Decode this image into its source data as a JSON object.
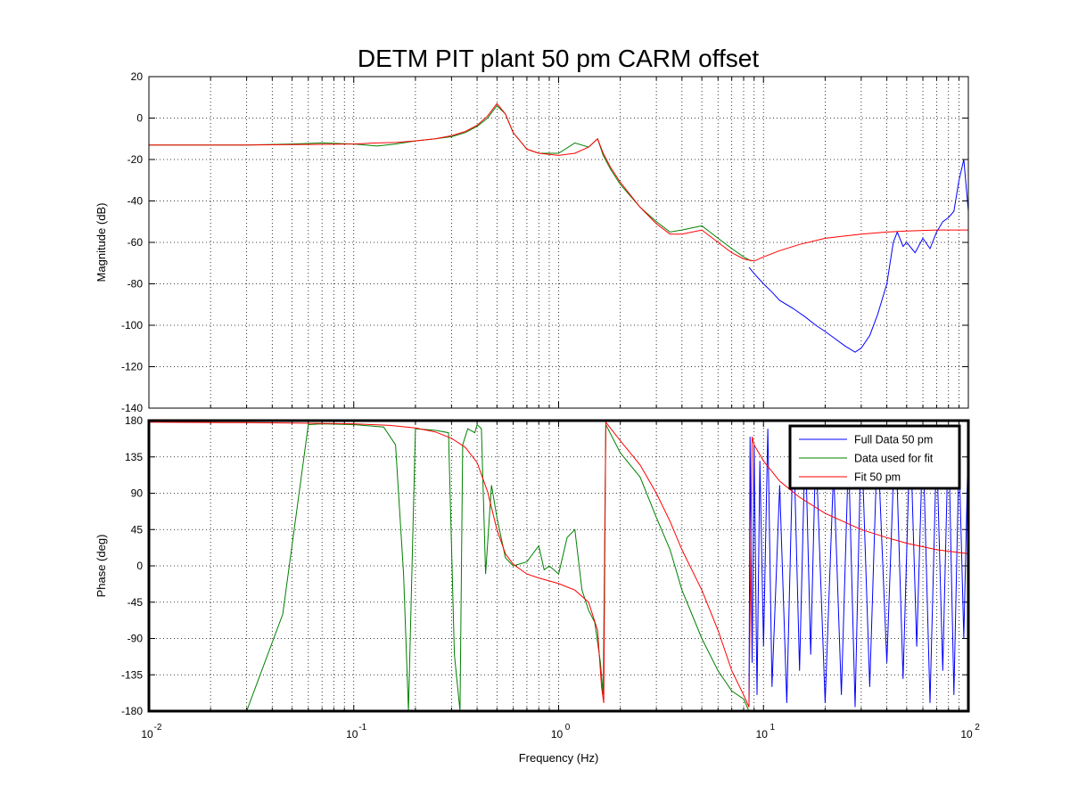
{
  "chart_data": [
    {
      "type": "line",
      "panel": "magnitude",
      "title": "DETM PIT plant 50 pm CARM offset",
      "xlabel": "",
      "ylabel": "Magnitude (dB)",
      "xscale": "log",
      "xlim": [
        0.01,
        100
      ],
      "ylim": [
        -140,
        20
      ],
      "yticks": [
        "20",
        "0",
        "-20",
        "-40",
        "-60",
        "-80",
        "-100",
        "-120",
        "-140"
      ],
      "grid": true,
      "series": [
        {
          "name": "Full Data 50 pm",
          "color": "#0000ff",
          "x": [
            8.5,
            9,
            10,
            11,
            12,
            14,
            16,
            18,
            20,
            22,
            25,
            28,
            30,
            33,
            36,
            40,
            43,
            45,
            48,
            50,
            55,
            60,
            65,
            70,
            75,
            80,
            85,
            90,
            95,
            100
          ],
          "y": [
            -72,
            -75,
            -80,
            -84,
            -88,
            -92,
            -96,
            -100,
            -103,
            -106,
            -110,
            -113,
            -111,
            -105,
            -95,
            -80,
            -60,
            -55,
            -62,
            -60,
            -65,
            -58,
            -63,
            -55,
            -50,
            -48,
            -45,
            -30,
            -20,
            -45
          ]
        },
        {
          "name": "Data used for fit",
          "color": "#008000",
          "x": [
            0.01,
            0.03,
            0.05,
            0.07,
            0.1,
            0.13,
            0.16,
            0.2,
            0.25,
            0.3,
            0.35,
            0.4,
            0.45,
            0.5,
            0.55,
            0.6,
            0.7,
            0.8,
            0.9,
            1.0,
            1.2,
            1.4,
            1.55,
            1.65,
            1.8,
            2.0,
            2.5,
            3.0,
            3.5,
            4.0,
            5.0,
            6.0,
            7.0,
            8.0,
            8.7
          ],
          "y": [
            -13,
            -13,
            -12.5,
            -12,
            -12.5,
            -13.5,
            -12.5,
            -11,
            -10,
            -9,
            -7,
            -4,
            0,
            6,
            2,
            -7,
            -15,
            -17,
            -17,
            -17,
            -12,
            -14,
            -10,
            -18,
            -25,
            -32,
            -43,
            -50,
            -55,
            -54,
            -52,
            -58,
            -63,
            -67,
            -69
          ]
        },
        {
          "name": "Fit 50 pm",
          "color": "#ff0000",
          "x": [
            0.01,
            0.03,
            0.05,
            0.07,
            0.1,
            0.13,
            0.16,
            0.2,
            0.25,
            0.3,
            0.35,
            0.4,
            0.45,
            0.5,
            0.55,
            0.6,
            0.7,
            0.8,
            0.9,
            1.0,
            1.2,
            1.4,
            1.55,
            1.65,
            1.8,
            2.0,
            2.5,
            3.0,
            3.5,
            4.0,
            5.0,
            6.0,
            7.0,
            8.0,
            9.0,
            10,
            12,
            15,
            20,
            30,
            40,
            50,
            70,
            100
          ],
          "y": [
            -13,
            -13,
            -12.8,
            -12.7,
            -12.5,
            -12,
            -11.8,
            -11,
            -10,
            -8.5,
            -6.5,
            -3.5,
            1,
            7,
            2,
            -7,
            -15,
            -17,
            -17.5,
            -18,
            -17,
            -14,
            -10,
            -17,
            -24,
            -31,
            -43,
            -51,
            -56,
            -56,
            -54,
            -60,
            -65,
            -68,
            -69,
            -67,
            -64,
            -61,
            -58,
            -56,
            -55,
            -54.5,
            -54,
            -54
          ]
        }
      ]
    },
    {
      "type": "line",
      "panel": "phase",
      "title": "",
      "xlabel": "Frequency  (Hz)",
      "ylabel": "Phase (deg)",
      "xscale": "log",
      "xlim": [
        0.01,
        100
      ],
      "ylim": [
        -180,
        180
      ],
      "yticks": [
        "180",
        "135",
        "90",
        "45",
        "0",
        "-45",
        "-90",
        "-135",
        "-180"
      ],
      "xticks": [
        "10",
        "10",
        "10",
        "10",
        "10"
      ],
      "xtick_exponents": [
        "-2",
        "-1",
        "0",
        "1",
        "2"
      ],
      "grid": true,
      "legend": {
        "position": "top-right",
        "entries": [
          "Full Data 50 pm",
          "Data used for fit",
          "Fit 50 pm"
        ]
      },
      "series": [
        {
          "name": "Full Data 50 pm",
          "color": "#0000ff",
          "x": [
            8.5,
            8.6,
            8.8,
            9.0,
            9.3,
            9.6,
            10,
            10.5,
            11,
            12,
            13,
            14,
            15,
            16,
            17,
            18,
            20,
            22,
            24,
            26,
            28,
            30,
            33,
            36,
            40,
            44,
            48,
            52,
            56,
            60,
            65,
            70,
            75,
            80,
            85,
            90,
            95,
            100
          ],
          "y": [
            -170,
            160,
            -120,
            150,
            -160,
            130,
            -100,
            170,
            -150,
            100,
            -170,
            170,
            -130,
            160,
            -110,
            150,
            -170,
            120,
            -160,
            140,
            -175,
            170,
            -150,
            160,
            -120,
            175,
            -140,
            170,
            -100,
            160,
            -170,
            150,
            -130,
            170,
            -160,
            140,
            -90,
            160
          ]
        },
        {
          "name": "Data used for fit",
          "color": "#008000",
          "x": [
            0.03,
            0.045,
            0.06,
            0.07,
            0.1,
            0.14,
            0.16,
            0.175,
            0.185,
            0.2,
            0.25,
            0.29,
            0.31,
            0.33,
            0.34,
            0.36,
            0.39,
            0.4,
            0.42,
            0.44,
            0.47,
            0.5,
            0.55,
            0.6,
            0.7,
            0.8,
            0.85,
            0.9,
            1.0,
            1.1,
            1.2,
            1.3,
            1.4,
            1.5,
            1.6,
            1.65,
            1.7,
            2.0,
            2.5,
            3.0,
            3.5,
            4.0,
            5.0,
            6.0,
            7.0,
            8.0,
            8.5
          ],
          "y": [
            -180,
            -60,
            175,
            176,
            175,
            172,
            150,
            -10,
            -180,
            170,
            168,
            165,
            -110,
            -180,
            150,
            170,
            165,
            175,
            170,
            -10,
            100,
            60,
            10,
            0,
            5,
            25,
            -5,
            0,
            -10,
            35,
            45,
            -30,
            -55,
            -70,
            -120,
            -160,
            175,
            140,
            110,
            60,
            20,
            -30,
            -90,
            -130,
            -155,
            -165,
            -180
          ]
        },
        {
          "name": "Fit 50 pm",
          "color": "#ff0000",
          "x": [
            0.01,
            0.03,
            0.05,
            0.1,
            0.15,
            0.2,
            0.25,
            0.3,
            0.35,
            0.4,
            0.45,
            0.5,
            0.55,
            0.6,
            0.7,
            0.8,
            1.0,
            1.2,
            1.4,
            1.55,
            1.62,
            1.66,
            1.7,
            2.0,
            2.5,
            3.0,
            3.5,
            4.0,
            5.0,
            6.0,
            7.0,
            8.0,
            8.5,
            8.8,
            9.0,
            10,
            12,
            15,
            20,
            30,
            40,
            50,
            70,
            100
          ],
          "y": [
            178,
            177.5,
            177,
            176,
            174,
            171,
            166,
            158,
            147,
            128,
            92,
            45,
            15,
            2,
            -10,
            -15,
            -22,
            -30,
            -45,
            -80,
            -150,
            -170,
            178,
            155,
            125,
            90,
            55,
            20,
            -30,
            -80,
            -130,
            -160,
            -175,
            160,
            150,
            130,
            105,
            85,
            65,
            45,
            35,
            28,
            20,
            15
          ]
        }
      ]
    }
  ]
}
